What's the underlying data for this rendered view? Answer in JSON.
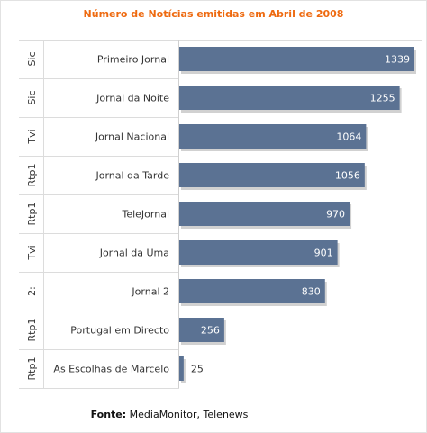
{
  "chart_data": {
    "type": "bar",
    "orientation": "horizontal",
    "title": "Número de Notícias emitidas em Abril de 2008",
    "groups": [
      "Sic",
      "Sic",
      "Tvi",
      "Rtp1",
      "Rtp1",
      "Tvi",
      "2:",
      "Rtp1",
      "Rtp1"
    ],
    "categories": [
      "Primeiro Jornal",
      "Jornal da Noite",
      "Jornal Nacional",
      "Jornal da Tarde",
      "TeleJornal",
      "Jornal da Uma",
      "Jornal 2",
      "Portugal em Directo",
      "As Escolhas de Marcelo"
    ],
    "values": [
      1339,
      1255,
      1064,
      1056,
      970,
      901,
      830,
      256,
      25
    ],
    "data_labels": [
      "1339",
      "1255",
      "1064",
      "1056",
      "970",
      "901",
      "830",
      "256",
      "25"
    ],
    "xlim": [
      0,
      1339
    ],
    "grid": false,
    "bar_color": "#5b7293"
  },
  "source": {
    "label": "Fonte:",
    "text": " MediaMonitor, Telenews"
  }
}
